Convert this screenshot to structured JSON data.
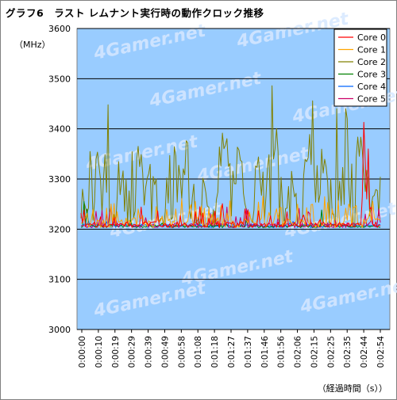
{
  "chart_data": {
    "type": "line",
    "title": "グラフ6　ラスト レムナント実行時の動作クロック推移",
    "ylabel": "（MHz）",
    "xlabel": "（経過時間（s））",
    "ylim": [
      3000,
      3600
    ],
    "yticks": [
      3000,
      3100,
      3200,
      3300,
      3400,
      3500,
      3600
    ],
    "xtick_labels": [
      "0:00:00",
      "0:00:10",
      "0:00:19",
      "0:00:29",
      "0:00:39",
      "0:00:49",
      "0:00:58",
      "0:01:08",
      "0:01:18",
      "0:01:27",
      "0:01:37",
      "0:01:46",
      "0:01:56",
      "0:02:06",
      "0:02:15",
      "0:02:25",
      "0:02:35",
      "0:02:44",
      "0:02:54"
    ],
    "grid": "horizontal",
    "legend_position": "top-right",
    "background": "#99ccff",
    "watermark": "4Gamer.net",
    "series_names": [
      "Core 0",
      "Core 1",
      "Core 2",
      "Core 3",
      "Core 4",
      "Core 5"
    ],
    "series_colors": [
      "#ff0000",
      "#ffa500",
      "#808000",
      "#008000",
      "#0066ff",
      "#cc0066"
    ],
    "series_summary": {
      "Core 0": {
        "baseline": 3206,
        "peak": 3413,
        "peak_time": "0:02:57"
      },
      "Core 1": {
        "baseline": 3215,
        "peak": 3265
      },
      "Core 2": {
        "baseline": 3300,
        "peak": 3486,
        "peak_time": "0:01:56"
      },
      "Core 3": {
        "baseline": 3203,
        "peak": 3255
      },
      "Core 4": {
        "baseline": 3203,
        "peak": 3215
      },
      "Core 5": {
        "baseline": 3206,
        "peak": 3250
      }
    }
  }
}
